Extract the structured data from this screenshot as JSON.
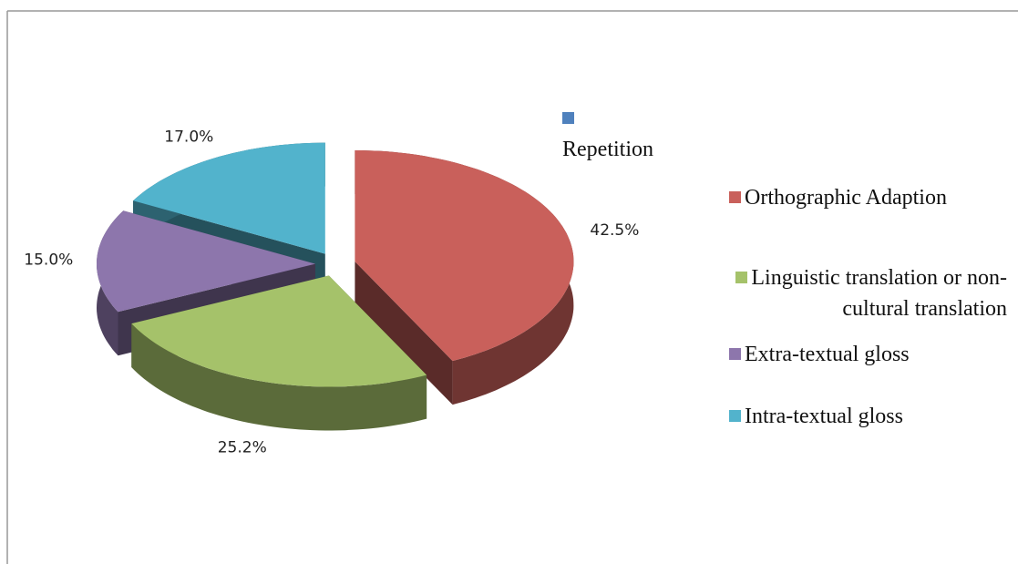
{
  "chart_data": {
    "type": "pie",
    "categories": [
      "Repetition",
      "Orthographic Adaption",
      "Linguistic translation or non-cultural translation",
      "Extra-textual gloss",
      "Intra-textual gloss"
    ],
    "values": [
      0,
      42.5,
      25.2,
      15.0,
      17.0
    ],
    "value_labels": [
      null,
      "42.5%",
      "25.2%",
      "15.0%",
      "17.0%"
    ],
    "colors": [
      "#4f81bd",
      "#c9605b",
      "#a5c26a",
      "#8d76ac",
      "#52b3cc"
    ],
    "legend": "right"
  }
}
